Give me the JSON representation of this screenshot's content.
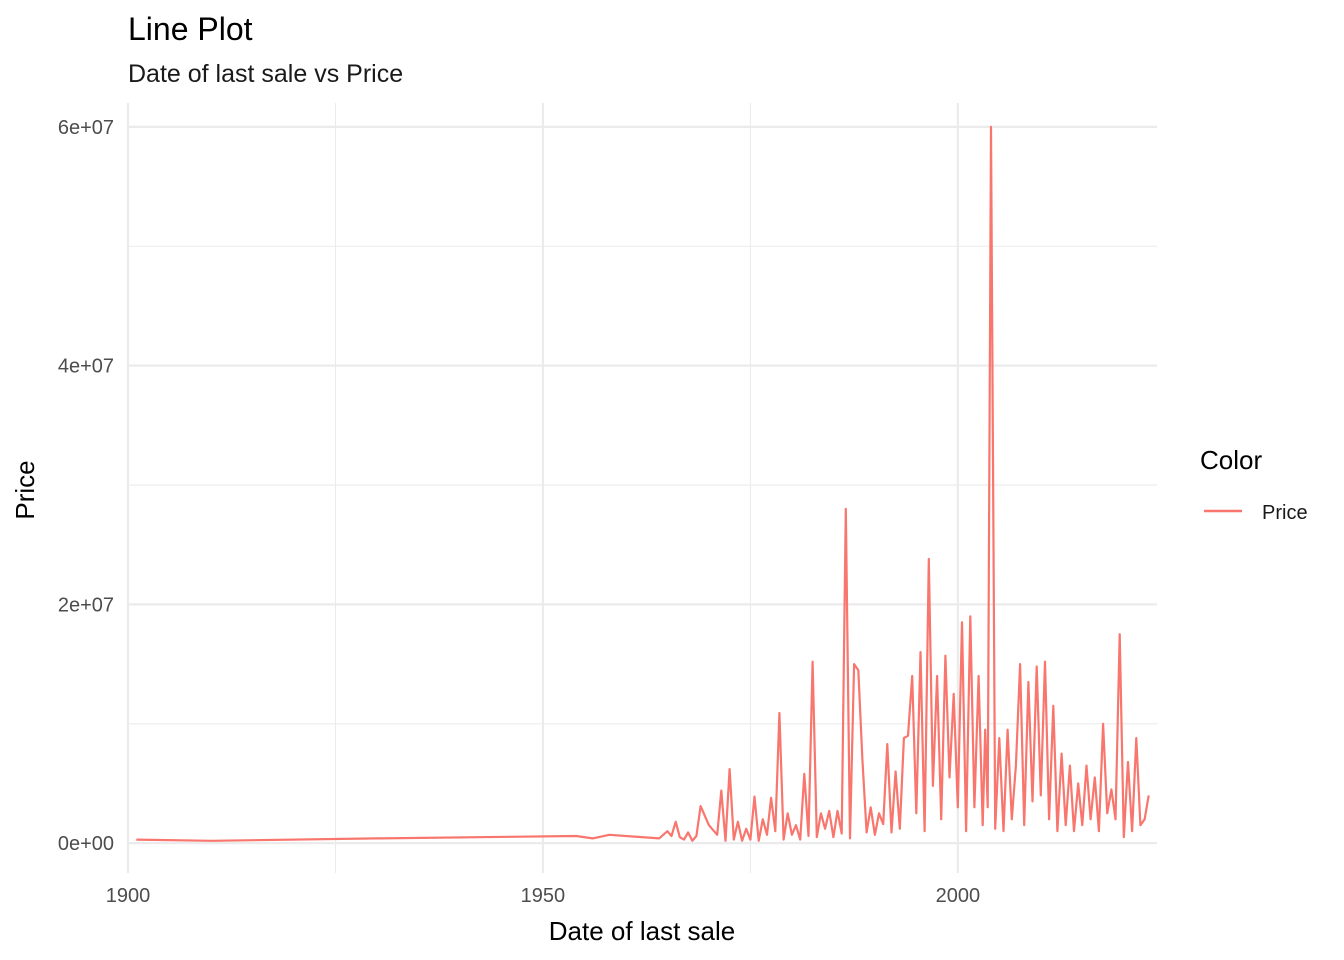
{
  "chart_data": {
    "type": "line",
    "title": "Line Plot",
    "subtitle": "Date of last sale vs Price",
    "xlabel": "Date of last sale",
    "ylabel": "Price",
    "xlim": [
      1900,
      2024
    ],
    "ylim": [
      -2500000,
      62000000
    ],
    "x_ticks": [
      1900,
      1950,
      2000
    ],
    "x_tick_labels": [
      "1900",
      "1950",
      "2000"
    ],
    "y_ticks": [
      0,
      20000000,
      40000000,
      60000000
    ],
    "y_tick_labels": [
      "0e+00",
      "2e+07",
      "4e+07",
      "6e+07"
    ],
    "grid": true,
    "legend": {
      "title": "Color",
      "position": "right"
    },
    "series": [
      {
        "name": "Price",
        "color": "#F8766D",
        "x": [
          1901,
          1910,
          1930,
          1954,
          1956,
          1958,
          1964,
          1965,
          1965.5,
          1966,
          1966.5,
          1967,
          1967.5,
          1968,
          1968.5,
          1969,
          1970,
          1971,
          1971.5,
          1972,
          1972.5,
          1973,
          1973.5,
          1974,
          1974.5,
          1975,
          1975.5,
          1976,
          1976.5,
          1977,
          1977.5,
          1978,
          1978.5,
          1979,
          1979.5,
          1980,
          1980.5,
          1981,
          1981.5,
          1982,
          1982.5,
          1983,
          1983.5,
          1984,
          1984.5,
          1985,
          1985.5,
          1986,
          1986.5,
          1987,
          1987.5,
          1988,
          1988.5,
          1989,
          1989.5,
          1990,
          1990.5,
          1991,
          1991.5,
          1992,
          1992.5,
          1993,
          1993.5,
          1994,
          1994.5,
          1995,
          1995.5,
          1996,
          1996.5,
          1997,
          1997.5,
          1998,
          1998.5,
          1999,
          1999.5,
          2000,
          2000.5,
          2001,
          2001.5,
          2002,
          2002.5,
          2003,
          2003.3,
          2003.6,
          2004,
          2004.5,
          2005,
          2005.5,
          2006,
          2006.5,
          2007,
          2007.5,
          2008,
          2008.5,
          2009,
          2009.5,
          2010,
          2010.5,
          2011,
          2011.5,
          2012,
          2012.5,
          2013,
          2013.5,
          2014,
          2014.5,
          2015,
          2015.5,
          2016,
          2016.5,
          2017,
          2017.5,
          2018,
          2018.5,
          2019,
          2019.5,
          2020,
          2020.5,
          2021,
          2021.5,
          2022,
          2022.5,
          2023
        ],
        "y": [
          300000,
          200000,
          400000,
          600000,
          400000,
          700000,
          400000,
          1000000,
          600000,
          1800000,
          500000,
          300000,
          900000,
          200000,
          600000,
          3100000,
          1500000,
          700000,
          4400000,
          200000,
          6200000,
          300000,
          1800000,
          200000,
          1200000,
          300000,
          3900000,
          200000,
          2000000,
          700000,
          3800000,
          1000000,
          10900000,
          300000,
          2500000,
          700000,
          1500000,
          300000,
          5800000,
          600000,
          15200000,
          500000,
          2500000,
          1200000,
          2700000,
          500000,
          2700000,
          800000,
          28000000,
          400000,
          15000000,
          14500000,
          7000000,
          900000,
          3000000,
          700000,
          2500000,
          1600000,
          8300000,
          900000,
          6000000,
          1200000,
          8800000,
          9000000,
          14000000,
          2500000,
          16000000,
          1000000,
          23800000,
          4800000,
          14000000,
          2000000,
          15700000,
          5500000,
          12500000,
          3000000,
          18500000,
          1000000,
          19000000,
          3000000,
          14000000,
          1500000,
          9500000,
          3000000,
          60000000,
          1200000,
          8800000,
          1000000,
          9500000,
          2000000,
          6500000,
          15000000,
          1500000,
          13500000,
          3500000,
          14800000,
          4000000,
          15200000,
          2000000,
          11500000,
          1000000,
          7500000,
          1500000,
          6500000,
          1000000,
          5000000,
          1500000,
          6500000,
          2000000,
          5500000,
          1000000,
          10000000,
          2500000,
          4500000,
          2000000,
          17500000,
          500000,
          6800000,
          1000000,
          8800000,
          1500000,
          2000000,
          4000000
        ]
      }
    ]
  }
}
